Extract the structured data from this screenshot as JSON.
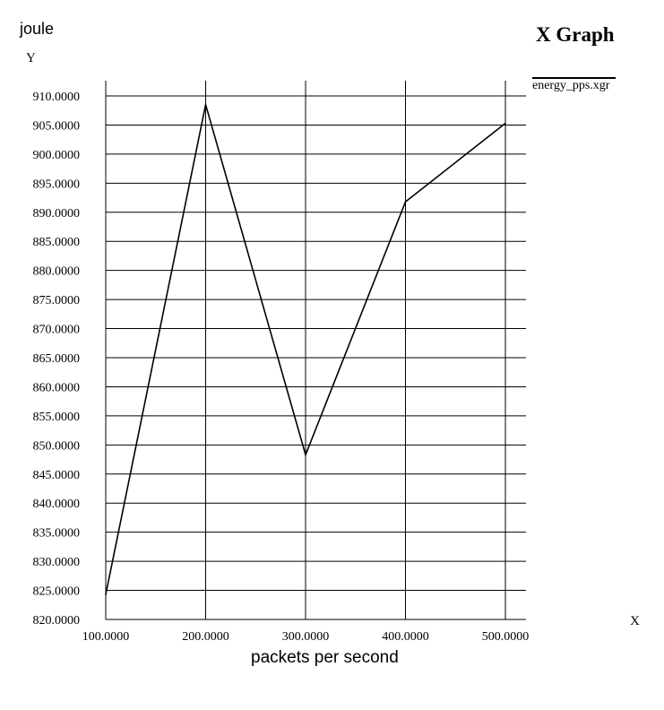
{
  "chart_data": {
    "type": "line",
    "title": "X Graph",
    "unit_label": "joule",
    "ylabel": "Y",
    "xlabel": "packets per second",
    "x_axis_name": "X",
    "x_ticks": [
      "100.0000",
      "200.0000",
      "300.0000",
      "400.0000",
      "500.0000"
    ],
    "y_ticks": [
      "820.0000",
      "825.0000",
      "830.0000",
      "835.0000",
      "840.0000",
      "845.0000",
      "850.0000",
      "855.0000",
      "860.0000",
      "865.0000",
      "870.0000",
      "875.0000",
      "880.0000",
      "885.0000",
      "890.0000",
      "895.0000",
      "900.0000",
      "905.0000",
      "910.0000"
    ],
    "xlim": [
      100,
      500
    ],
    "ylim": [
      820,
      910
    ],
    "grid": true,
    "legend_placement": "right",
    "series": [
      {
        "name": "energy_pps.xgr",
        "color": "#000000",
        "x": [
          100,
          200,
          300,
          400,
          500
        ],
        "values": [
          824.3,
          908.5,
          848.3,
          891.8,
          905.3
        ]
      }
    ]
  }
}
